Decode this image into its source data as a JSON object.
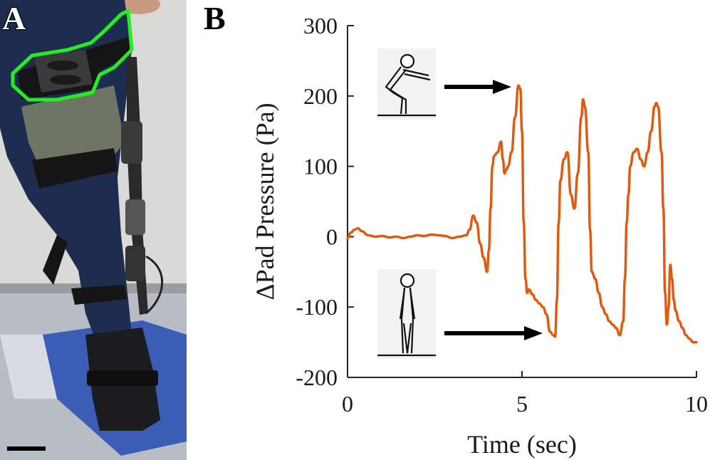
{
  "figure": {
    "panel_a_label": "A",
    "panel_b_label": "B"
  },
  "photo": {
    "colors": {
      "outline": "#22ee22",
      "pants": "#1e2d4f",
      "wall": "#d9d9d7",
      "floor": "#b8bcc4",
      "tape": "#3b5db5",
      "strap": "#151515",
      "brace": "#7d8268"
    }
  },
  "icons": {
    "squat": "squat-pose-icon",
    "stand": "standing-pose-icon",
    "arrow": "arrow-right-icon"
  },
  "chart_data": {
    "type": "line",
    "xlabel": "Time (sec)",
    "ylabel": "ΔPad Pressure (Pa)",
    "xlim": [
      0,
      10
    ],
    "ylim": [
      -200,
      300
    ],
    "xticks": [
      0,
      5,
      10
    ],
    "yticks": [
      300,
      200,
      100,
      0,
      -100,
      -200
    ],
    "series": [
      {
        "color": "#e05a10",
        "x": [
          0,
          0.1,
          0.2,
          0.3,
          0.4,
          0.6,
          0.8,
          1.0,
          1.2,
          1.4,
          1.6,
          1.8,
          2.0,
          2.2,
          2.4,
          2.6,
          2.8,
          3.0,
          3.2,
          3.4,
          3.5,
          3.6,
          3.7,
          3.8,
          3.9,
          4.0,
          4.05,
          4.1,
          4.15,
          4.2,
          4.3,
          4.4,
          4.45,
          4.5,
          4.55,
          4.6,
          4.7,
          4.8,
          4.9,
          4.95,
          5.0,
          5.05,
          5.1,
          5.15,
          5.2,
          5.3,
          5.4,
          5.5,
          5.6,
          5.7,
          5.8,
          5.9,
          5.95,
          6.0,
          6.05,
          6.1,
          6.2,
          6.3,
          6.4,
          6.5,
          6.6,
          6.7,
          6.75,
          6.8,
          6.9,
          6.95,
          7.0,
          7.1,
          7.2,
          7.3,
          7.4,
          7.5,
          7.6,
          7.7,
          7.8,
          7.9,
          7.95,
          8.0,
          8.05,
          8.1,
          8.2,
          8.3,
          8.4,
          8.5,
          8.6,
          8.7,
          8.8,
          8.85,
          8.9,
          9.0,
          9.05,
          9.1,
          9.15,
          9.2,
          9.25,
          9.3,
          9.35,
          9.4,
          9.5,
          9.6,
          9.7,
          9.8,
          9.9,
          10.0
        ],
        "y": [
          -2,
          6,
          10,
          12,
          8,
          2,
          0,
          1,
          -1,
          0,
          -2,
          0,
          2,
          1,
          3,
          2,
          1,
          -2,
          0,
          2,
          10,
          30,
          20,
          -10,
          -30,
          -50,
          -20,
          40,
          100,
          115,
          120,
          135,
          110,
          90,
          95,
          100,
          120,
          170,
          215,
          210,
          150,
          20,
          -60,
          -80,
          -75,
          -82,
          -90,
          -95,
          -100,
          -110,
          -135,
          -140,
          -142,
          -90,
          20,
          80,
          110,
          120,
          60,
          40,
          90,
          170,
          195,
          185,
          120,
          10,
          -50,
          -60,
          -80,
          -100,
          -110,
          -120,
          -125,
          -130,
          -140,
          -120,
          -60,
          20,
          60,
          100,
          120,
          125,
          110,
          100,
          120,
          150,
          185,
          190,
          185,
          120,
          40,
          -80,
          -125,
          -100,
          -40,
          -60,
          -90,
          -105,
          -120,
          -130,
          -140,
          -145,
          -150,
          -150
        ]
      }
    ],
    "annotations": [
      {
        "icon": "squat-pose-icon",
        "points_to": {
          "x": 4.8,
          "y": 215
        }
      },
      {
        "icon": "standing-pose-icon",
        "points_to": {
          "x": 5.6,
          "y": -140
        }
      }
    ]
  }
}
